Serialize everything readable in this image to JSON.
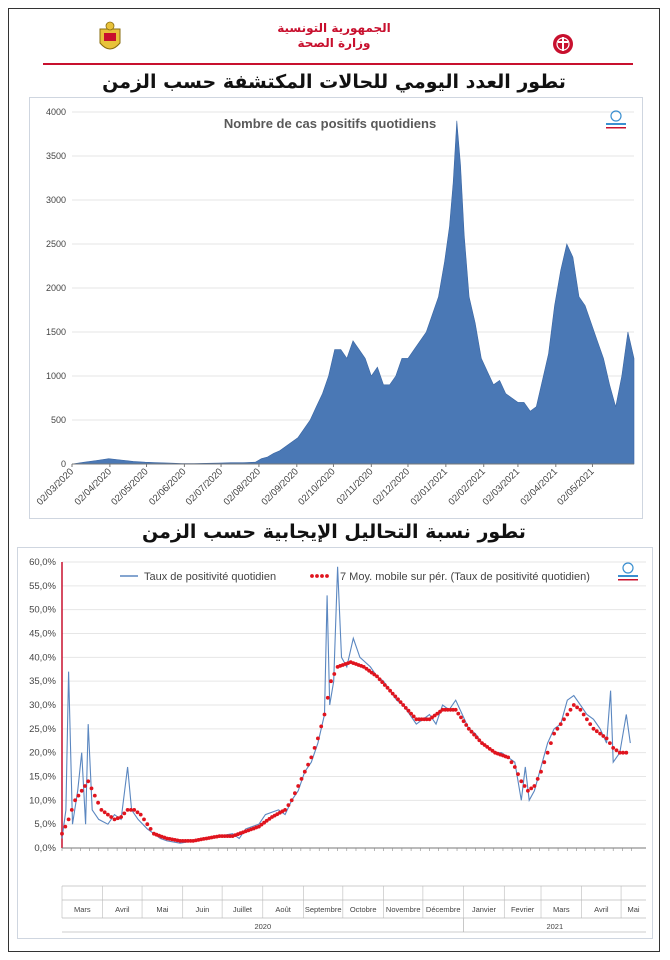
{
  "header": {
    "republic": "الجمهورية التونسية",
    "ministry": "وزارة الصحة",
    "colors": {
      "accent": "#c8102e",
      "area": "#4a78b5",
      "line": "#5b87c0",
      "ma": "#e0141e"
    }
  },
  "chart1_title": "تطور العدد اليومي للحالات المكتشفة حسب الزمن",
  "chart2_title": "تطور نسبة التحاليل الإيجابية حسب الزمن",
  "chart_data": [
    {
      "type": "area",
      "title": "Nombre de cas positifs quotidiens",
      "ylim": [
        0,
        4000
      ],
      "yticks": [
        0,
        500,
        1000,
        1500,
        2000,
        2500,
        3000,
        3500,
        4000
      ],
      "xlim_days": [
        0,
        460
      ],
      "xticks": [
        {
          "label": "02/03/2020",
          "day": 0
        },
        {
          "label": "02/04/2020",
          "day": 31
        },
        {
          "label": "02/05/2020",
          "day": 61
        },
        {
          "label": "02/06/2020",
          "day": 92
        },
        {
          "label": "02/07/2020",
          "day": 122
        },
        {
          "label": "02/08/2020",
          "day": 153
        },
        {
          "label": "02/09/2020",
          "day": 184
        },
        {
          "label": "02/10/2020",
          "day": 214
        },
        {
          "label": "02/11/2020",
          "day": 245
        },
        {
          "label": "02/12/2020",
          "day": 275
        },
        {
          "label": "02/01/2021",
          "day": 306
        },
        {
          "label": "02/02/2021",
          "day": 337
        },
        {
          "label": "02/03/2021",
          "day": 365
        },
        {
          "label": "02/04/2021",
          "day": 396
        },
        {
          "label": "02/05/2021",
          "day": 426
        }
      ],
      "series_points": [
        [
          0,
          0
        ],
        [
          10,
          20
        ],
        [
          20,
          40
        ],
        [
          30,
          60
        ],
        [
          40,
          45
        ],
        [
          50,
          30
        ],
        [
          60,
          20
        ],
        [
          70,
          15
        ],
        [
          80,
          10
        ],
        [
          90,
          5
        ],
        [
          100,
          5
        ],
        [
          110,
          8
        ],
        [
          120,
          10
        ],
        [
          130,
          15
        ],
        [
          140,
          15
        ],
        [
          150,
          20
        ],
        [
          155,
          60
        ],
        [
          160,
          80
        ],
        [
          165,
          120
        ],
        [
          170,
          150
        ],
        [
          175,
          200
        ],
        [
          180,
          250
        ],
        [
          185,
          300
        ],
        [
          190,
          400
        ],
        [
          195,
          500
        ],
        [
          200,
          650
        ],
        [
          205,
          800
        ],
        [
          210,
          1000
        ],
        [
          215,
          1300
        ],
        [
          220,
          1300
        ],
        [
          225,
          1200
        ],
        [
          230,
          1400
        ],
        [
          235,
          1300
        ],
        [
          240,
          1200
        ],
        [
          245,
          1000
        ],
        [
          250,
          1100
        ],
        [
          255,
          900
        ],
        [
          260,
          900
        ],
        [
          265,
          1000
        ],
        [
          270,
          1200
        ],
        [
          275,
          1200
        ],
        [
          280,
          1300
        ],
        [
          285,
          1400
        ],
        [
          290,
          1500
        ],
        [
          295,
          1700
        ],
        [
          300,
          1900
        ],
        [
          305,
          2300
        ],
        [
          309,
          2700
        ],
        [
          312,
          3200
        ],
        [
          315,
          3900
        ],
        [
          318,
          3400
        ],
        [
          321,
          2600
        ],
        [
          325,
          1900
        ],
        [
          330,
          1600
        ],
        [
          335,
          1200
        ],
        [
          340,
          1050
        ],
        [
          345,
          900
        ],
        [
          350,
          950
        ],
        [
          355,
          800
        ],
        [
          360,
          750
        ],
        [
          365,
          700
        ],
        [
          370,
          700
        ],
        [
          375,
          600
        ],
        [
          380,
          650
        ],
        [
          385,
          950
        ],
        [
          390,
          1250
        ],
        [
          395,
          1800
        ],
        [
          400,
          2200
        ],
        [
          405,
          2500
        ],
        [
          410,
          2350
        ],
        [
          415,
          1900
        ],
        [
          420,
          1800
        ],
        [
          425,
          1600
        ],
        [
          430,
          1400
        ],
        [
          435,
          1200
        ],
        [
          440,
          900
        ],
        [
          445,
          650
        ],
        [
          450,
          1000
        ],
        [
          455,
          1500
        ],
        [
          460,
          1200
        ]
      ]
    },
    {
      "type": "line",
      "ylim": [
        0,
        60
      ],
      "yticks": [
        "0,0%",
        "5,0%",
        "10,0%",
        "15,0%",
        "20,0%",
        "25,0%",
        "30,0%",
        "35,0%",
        "40,0%",
        "45,0%",
        "50,0%",
        "55,0%",
        "60,0%"
      ],
      "legend": [
        "Taux de positivité quotidien",
        "7 Moy. mobile sur pér. (Taux de positivité quotidien)"
      ],
      "xlim_days": [
        0,
        445
      ],
      "daily_points": [
        [
          0,
          2
        ],
        [
          3,
          8
        ],
        [
          5,
          37
        ],
        [
          8,
          5
        ],
        [
          12,
          12
        ],
        [
          15,
          20
        ],
        [
          18,
          5
        ],
        [
          20,
          26
        ],
        [
          23,
          8
        ],
        [
          28,
          6
        ],
        [
          35,
          5
        ],
        [
          40,
          7
        ],
        [
          45,
          6
        ],
        [
          50,
          17
        ],
        [
          53,
          8
        ],
        [
          58,
          6
        ],
        [
          65,
          4
        ],
        [
          70,
          3
        ],
        [
          75,
          2
        ],
        [
          80,
          1.5
        ],
        [
          90,
          1
        ],
        [
          100,
          1.5
        ],
        [
          110,
          2
        ],
        [
          120,
          2.5
        ],
        [
          130,
          3
        ],
        [
          135,
          2
        ],
        [
          140,
          4
        ],
        [
          150,
          5
        ],
        [
          155,
          7
        ],
        [
          165,
          8
        ],
        [
          170,
          7
        ],
        [
          175,
          10
        ],
        [
          180,
          12
        ],
        [
          185,
          16
        ],
        [
          190,
          18
        ],
        [
          195,
          22
        ],
        [
          200,
          28
        ],
        [
          202,
          53
        ],
        [
          204,
          30
        ],
        [
          207,
          35
        ],
        [
          210,
          59
        ],
        [
          213,
          40
        ],
        [
          217,
          38
        ],
        [
          222,
          44
        ],
        [
          227,
          40
        ],
        [
          235,
          38
        ],
        [
          240,
          36
        ],
        [
          245,
          35
        ],
        [
          250,
          33
        ],
        [
          255,
          31
        ],
        [
          260,
          30
        ],
        [
          265,
          28
        ],
        [
          270,
          26
        ],
        [
          275,
          27
        ],
        [
          280,
          28
        ],
        [
          285,
          26
        ],
        [
          290,
          30
        ],
        [
          295,
          29
        ],
        [
          300,
          31
        ],
        [
          305,
          28
        ],
        [
          310,
          25
        ],
        [
          315,
          24
        ],
        [
          320,
          22
        ],
        [
          325,
          21
        ],
        [
          330,
          20
        ],
        [
          335,
          20
        ],
        [
          340,
          19
        ],
        [
          345,
          18
        ],
        [
          350,
          10
        ],
        [
          353,
          17
        ],
        [
          356,
          10
        ],
        [
          360,
          12
        ],
        [
          365,
          17
        ],
        [
          370,
          22
        ],
        [
          375,
          25
        ],
        [
          380,
          26
        ],
        [
          385,
          31
        ],
        [
          390,
          32
        ],
        [
          395,
          30
        ],
        [
          400,
          28
        ],
        [
          405,
          27
        ],
        [
          410,
          25
        ],
        [
          415,
          22
        ],
        [
          418,
          33
        ],
        [
          420,
          18
        ],
        [
          425,
          20
        ],
        [
          430,
          28
        ],
        [
          433,
          22
        ]
      ],
      "ma_points": [
        [
          0,
          3
        ],
        [
          5,
          6
        ],
        [
          10,
          10
        ],
        [
          15,
          12
        ],
        [
          20,
          14
        ],
        [
          25,
          11
        ],
        [
          30,
          8
        ],
        [
          35,
          7
        ],
        [
          40,
          6
        ],
        [
          45,
          6.5
        ],
        [
          50,
          8
        ],
        [
          55,
          8
        ],
        [
          60,
          7
        ],
        [
          65,
          5
        ],
        [
          70,
          3
        ],
        [
          80,
          2
        ],
        [
          90,
          1.5
        ],
        [
          100,
          1.5
        ],
        [
          110,
          2
        ],
        [
          120,
          2.5
        ],
        [
          130,
          2.5
        ],
        [
          140,
          3.5
        ],
        [
          150,
          4.5
        ],
        [
          160,
          6.5
        ],
        [
          170,
          8
        ],
        [
          175,
          10
        ],
        [
          180,
          13
        ],
        [
          185,
          16
        ],
        [
          190,
          19
        ],
        [
          195,
          23
        ],
        [
          200,
          28
        ],
        [
          205,
          35
        ],
        [
          210,
          38
        ],
        [
          220,
          39
        ],
        [
          230,
          38
        ],
        [
          240,
          36
        ],
        [
          250,
          33
        ],
        [
          260,
          30
        ],
        [
          270,
          27
        ],
        [
          280,
          27
        ],
        [
          290,
          29
        ],
        [
          300,
          29
        ],
        [
          310,
          25
        ],
        [
          320,
          22
        ],
        [
          330,
          20
        ],
        [
          340,
          19
        ],
        [
          345,
          17
        ],
        [
          350,
          14
        ],
        [
          355,
          12
        ],
        [
          360,
          13
        ],
        [
          365,
          16
        ],
        [
          370,
          20
        ],
        [
          375,
          24
        ],
        [
          380,
          26
        ],
        [
          385,
          28
        ],
        [
          390,
          30
        ],
        [
          395,
          29
        ],
        [
          400,
          27
        ],
        [
          405,
          25
        ],
        [
          410,
          24
        ],
        [
          415,
          23
        ],
        [
          420,
          21
        ],
        [
          425,
          20
        ],
        [
          430,
          20
        ],
        [
          433,
          21
        ]
      ],
      "month_labels": [
        "Mars",
        "Avril",
        "Mai",
        "Juin",
        "Juillet",
        "Août",
        "Septembre",
        "Octobre",
        "Novembre",
        "Décembre",
        "Janvier",
        "Fevrier",
        "Mars",
        "Avril",
        "Mai"
      ],
      "year_labels": [
        "2020",
        "2021"
      ]
    }
  ]
}
